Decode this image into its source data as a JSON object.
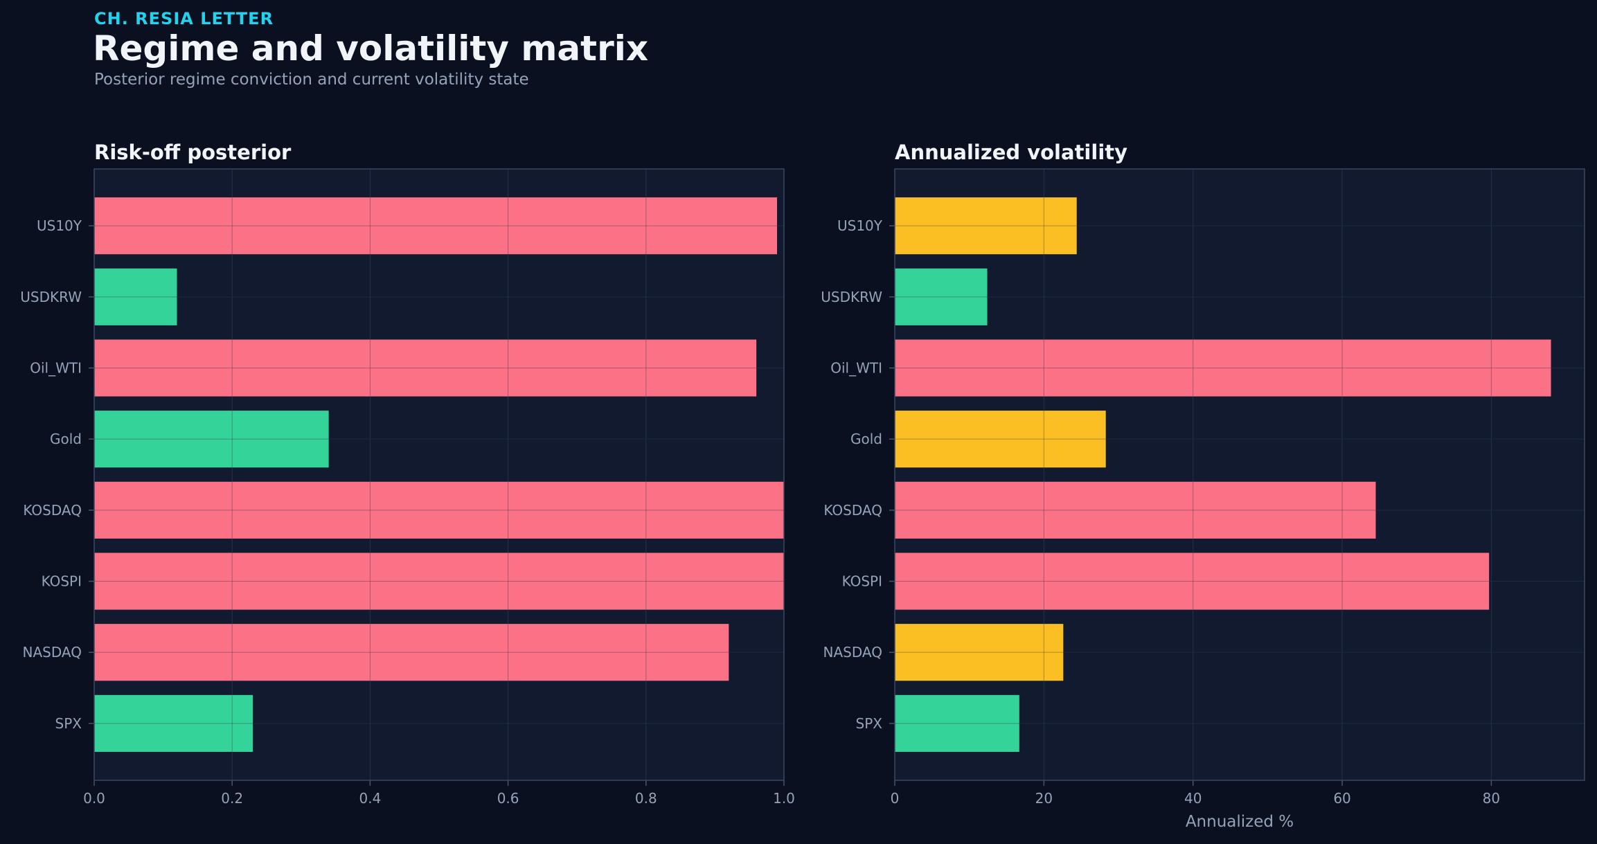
{
  "header": {
    "eyebrow": "CH. RESIA LETTER",
    "title": "Regime and volatility matrix",
    "subtitle": "Posterior regime conviction and current volatility state"
  },
  "colors": {
    "background": "#0b1021",
    "panel": "#111a2e",
    "risk": "#fb7185",
    "calm": "#34d399",
    "warn": "#fbbf24",
    "accent": "#22d3ee"
  },
  "chart_data": [
    {
      "type": "bar",
      "orientation": "horizontal",
      "title": "Risk-off posterior",
      "xlabel": "",
      "categories": [
        "US10Y",
        "USDKRW",
        "Oil_WTI",
        "Gold",
        "KOSDAQ",
        "KOSPI",
        "NASDAQ",
        "SPX"
      ],
      "values": [
        0.99,
        0.12,
        0.96,
        0.34,
        1.0,
        1.0,
        0.92,
        0.23
      ],
      "bar_colors": [
        "risk",
        "calm",
        "risk",
        "calm",
        "risk",
        "risk",
        "risk",
        "calm"
      ],
      "xlim": [
        0,
        1.0
      ],
      "xticks": [
        "0.0",
        "0.2",
        "0.4",
        "0.6",
        "0.8",
        "1.0"
      ],
      "xtick_values": [
        0,
        0.2,
        0.4,
        0.6,
        0.8,
        1.0
      ],
      "grid": true
    },
    {
      "type": "bar",
      "orientation": "horizontal",
      "title": "Annualized volatility",
      "xlabel": "Annualized %",
      "categories": [
        "US10Y",
        "USDKRW",
        "Oil_WTI",
        "Gold",
        "KOSDAQ",
        "KOSPI",
        "NASDAQ",
        "SPX"
      ],
      "values": [
        24.4,
        12.4,
        88.0,
        28.3,
        64.5,
        79.7,
        22.6,
        16.7
      ],
      "bar_colors": [
        "warn",
        "calm",
        "risk",
        "warn",
        "risk",
        "risk",
        "warn",
        "calm"
      ],
      "xlim": [
        0,
        92.5
      ],
      "xticks": [
        "0",
        "20",
        "40",
        "60",
        "80"
      ],
      "xtick_values": [
        0,
        20,
        40,
        60,
        80
      ],
      "grid": true
    }
  ]
}
